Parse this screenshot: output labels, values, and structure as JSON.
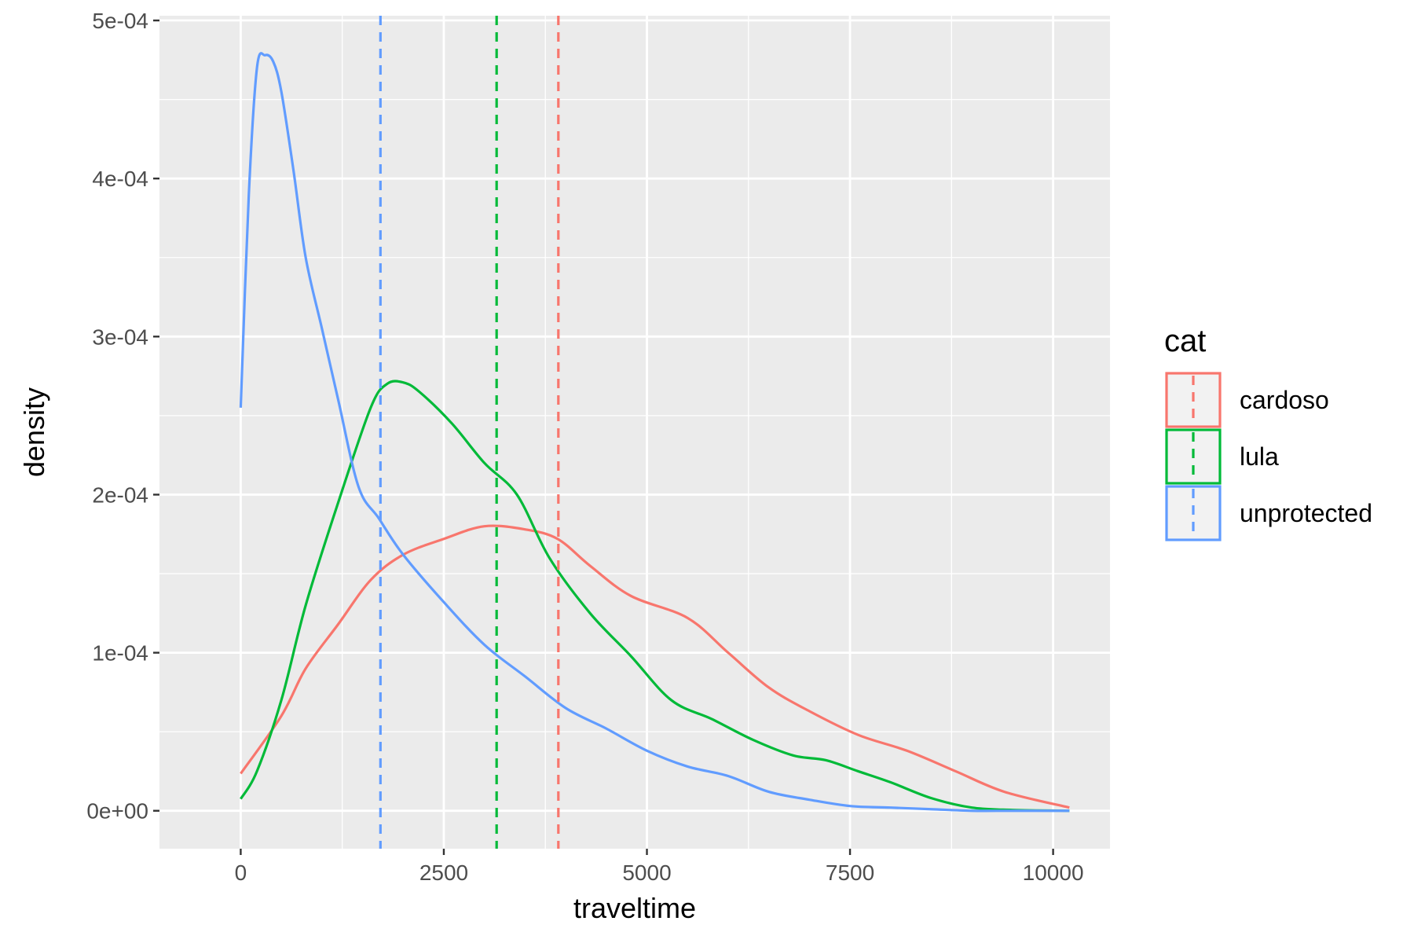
{
  "chart_data": {
    "type": "line",
    "xlabel": "traveltime",
    "ylabel": "density",
    "xlim": [
      -1000,
      10700
    ],
    "ylim": [
      -2.4e-05,
      0.000503
    ],
    "x_ticks": [
      0,
      2500,
      5000,
      7500,
      10000
    ],
    "x_tick_labels": [
      "0",
      "2500",
      "5000",
      "7500",
      "10000"
    ],
    "y_ticks": [
      0,
      0.0001,
      0.0002,
      0.0003,
      0.0004,
      0.0005
    ],
    "y_tick_labels": [
      "0e+00",
      "1e-04",
      "2e-04",
      "3e-04",
      "4e-04",
      "5e-04"
    ],
    "grid": true,
    "legend": {
      "title": "cat",
      "position": "right"
    },
    "series": [
      {
        "name": "cardoso",
        "color": "#F8766D",
        "mean": 3910,
        "x": [
          0,
          500,
          800,
          1200,
          1600,
          2000,
          2500,
          3000,
          3500,
          3900,
          4300,
          4800,
          5500,
          6000,
          6500,
          7000,
          7600,
          8200,
          8800,
          9400,
          10200
        ],
        "y": [
          2.35e-05,
          6e-05,
          9e-05,
          0.000118,
          0.000146,
          0.000162,
          0.000172,
          0.00018,
          0.000178,
          0.000172,
          0.000155,
          0.000136,
          0.000122,
          0.0001,
          7.8e-05,
          6.3e-05,
          4.8e-05,
          3.8e-05,
          2.5e-05,
          1.2e-05,
          2e-06
        ]
      },
      {
        "name": "lula",
        "color": "#00BA38",
        "mean": 3150,
        "x": [
          0,
          200,
          500,
          800,
          1200,
          1600,
          1800,
          2000,
          2200,
          2600,
          3000,
          3400,
          3800,
          4300,
          4800,
          5300,
          5800,
          6300,
          6800,
          7200,
          7600,
          8000,
          8500,
          9000,
          9500,
          10200
        ],
        "y": [
          7.5e-06,
          2.5e-05,
          7e-05,
          0.00013,
          0.000195,
          0.000255,
          0.00027,
          0.000271,
          0.000265,
          0.000245,
          0.00022,
          0.0002,
          0.00016,
          0.000125,
          9.8e-05,
          7e-05,
          5.8e-05,
          4.5e-05,
          3.5e-05,
          3.2e-05,
          2.5e-05,
          1.8e-05,
          8e-06,
          2e-06,
          5e-07,
          0
        ]
      },
      {
        "name": "unprotected",
        "color": "#619CFF",
        "mean": 1720,
        "x": [
          0,
          100,
          200,
          300,
          400,
          500,
          650,
          800,
          1000,
          1200,
          1450,
          1700,
          2000,
          2500,
          3000,
          3500,
          4000,
          4500,
          5000,
          5500,
          6000,
          6500,
          7000,
          7500,
          8000,
          8500,
          9000,
          9500,
          10200
        ],
        "y": [
          0.000255,
          0.00039,
          0.00047,
          0.000478,
          0.000474,
          0.000455,
          0.000405,
          0.00035,
          0.000305,
          0.00026,
          0.000205,
          0.000185,
          0.000162,
          0.000132,
          0.000105,
          8.5e-05,
          6.5e-05,
          5.2e-05,
          3.8e-05,
          2.8e-05,
          2.2e-05,
          1.2e-05,
          7e-06,
          3e-06,
          2e-06,
          1e-06,
          0,
          0,
          0
        ]
      }
    ]
  }
}
